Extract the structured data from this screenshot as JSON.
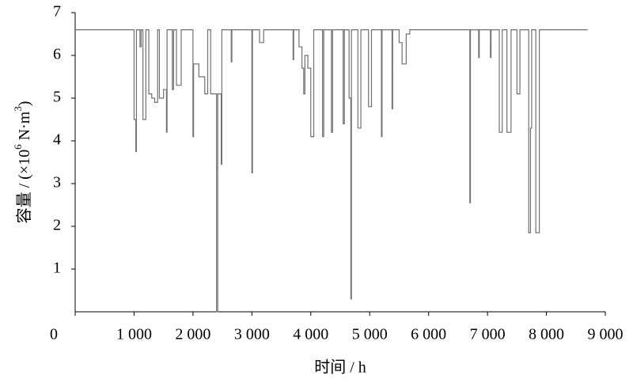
{
  "chart_data": {
    "type": "line",
    "x_label": "时间 / h",
    "y_label": [
      "容量 / (×10",
      "6",
      " N·m",
      "3",
      ")"
    ],
    "xlim": [
      0,
      9000
    ],
    "ylim": [
      0,
      7
    ],
    "xticks": [
      0,
      {
        "value": 1000,
        "label": "1 000"
      },
      {
        "value": 2000,
        "label": "2 000"
      },
      {
        "value": 3000,
        "label": "3 000"
      },
      {
        "value": 4000,
        "label": "4 000"
      },
      {
        "value": 5000,
        "label": "5 000"
      },
      {
        "value": 6000,
        "label": "6 000"
      },
      {
        "value": 7000,
        "label": "7 000"
      },
      {
        "value": 8000,
        "label": "8 000"
      },
      {
        "value": 9000,
        "label": "9 000"
      }
    ],
    "yticks": [
      1,
      2,
      3,
      4,
      5,
      6,
      7
    ],
    "x": [
      0,
      1000,
      1000,
      1030,
      1030,
      1040,
      1040,
      1100,
      1100,
      1120,
      1120,
      1150,
      1150,
      1200,
      1200,
      1250,
      1250,
      1300,
      1300,
      1350,
      1350,
      1400,
      1400,
      1430,
      1430,
      1500,
      1500,
      1550,
      1550,
      1560,
      1560,
      1650,
      1650,
      1670,
      1670,
      1720,
      1720,
      1800,
      1800,
      2000,
      2000,
      2010,
      2010,
      2100,
      2100,
      2200,
      2200,
      2250,
      2250,
      2300,
      2300,
      2400,
      2400,
      2420,
      2420,
      2480,
      2480,
      2490,
      2490,
      2650,
      2650,
      2660,
      2660,
      3000,
      3000,
      3010,
      3010,
      3130,
      3130,
      3200,
      3200,
      3700,
      3700,
      3710,
      3710,
      3800,
      3800,
      3850,
      3850,
      3880,
      3880,
      3900,
      3900,
      3950,
      3950,
      4000,
      4000,
      4050,
      4050,
      4200,
      4200,
      4220,
      4220,
      4350,
      4350,
      4370,
      4370,
      4550,
      4550,
      4570,
      4570,
      4650,
      4650,
      4680,
      4680,
      4690,
      4690,
      4800,
      4800,
      4850,
      4850,
      4980,
      4980,
      5030,
      5030,
      5200,
      5200,
      5210,
      5210,
      5380,
      5380,
      5390,
      5390,
      5500,
      5500,
      5550,
      5550,
      5620,
      5620,
      5680,
      5680,
      6700,
      6700,
      6710,
      6710,
      6850,
      6850,
      6860,
      6860,
      7050,
      7050,
      7060,
      7060,
      7200,
      7200,
      7250,
      7250,
      7330,
      7330,
      7400,
      7400,
      7500,
      7500,
      7550,
      7550,
      7700,
      7700,
      7730,
      7730,
      7750,
      7750,
      7820,
      7820,
      7880,
      7880,
      8700
    ],
    "series": [
      {
        "color": "#707070",
        "values": [
          6.6,
          6.6,
          4.5,
          4.5,
          3.75,
          3.75,
          6.6,
          6.6,
          6.2,
          6.2,
          6.6,
          6.6,
          4.5,
          4.5,
          6.6,
          6.6,
          5.1,
          5.1,
          5.0,
          5.0,
          4.9,
          4.9,
          6.6,
          6.6,
          5.0,
          5.0,
          5.2,
          5.2,
          4.2,
          4.2,
          6.6,
          6.6,
          5.2,
          5.2,
          6.6,
          6.6,
          5.3,
          5.3,
          6.6,
          6.6,
          4.1,
          4.1,
          5.8,
          5.8,
          5.5,
          5.5,
          5.1,
          5.1,
          6.6,
          6.6,
          5.1,
          5.1,
          0,
          0,
          5.1,
          5.1,
          3.45,
          3.45,
          6.6,
          6.6,
          5.85,
          5.85,
          6.6,
          6.6,
          3.25,
          3.25,
          6.6,
          6.6,
          6.3,
          6.3,
          6.6,
          6.6,
          5.9,
          5.9,
          6.6,
          6.6,
          6.2,
          6.2,
          5.7,
          5.7,
          5.1,
          5.1,
          6.0,
          6.0,
          5.7,
          5.7,
          4.1,
          4.1,
          6.6,
          6.6,
          4.1,
          4.1,
          6.6,
          6.6,
          4.2,
          4.2,
          6.6,
          6.6,
          4.4,
          4.4,
          6.6,
          6.6,
          5.0,
          5.0,
          0.3,
          0.3,
          6.6,
          6.6,
          4.3,
          4.3,
          6.6,
          6.6,
          4.8,
          4.8,
          6.6,
          6.6,
          4.1,
          4.1,
          6.6,
          6.6,
          4.75,
          4.75,
          6.6,
          6.6,
          6.3,
          6.3,
          5.8,
          5.8,
          6.5,
          6.5,
          6.6,
          6.6,
          2.55,
          2.55,
          6.6,
          6.6,
          5.95,
          5.95,
          6.6,
          6.6,
          5.95,
          5.95,
          6.6,
          6.6,
          4.2,
          4.2,
          6.6,
          6.6,
          4.2,
          4.2,
          6.6,
          6.6,
          5.1,
          5.1,
          6.6,
          6.6,
          1.85,
          1.85,
          4.3,
          4.3,
          6.6,
          6.6,
          1.85,
          1.85,
          6.6,
          6.6
        ]
      }
    ]
  }
}
